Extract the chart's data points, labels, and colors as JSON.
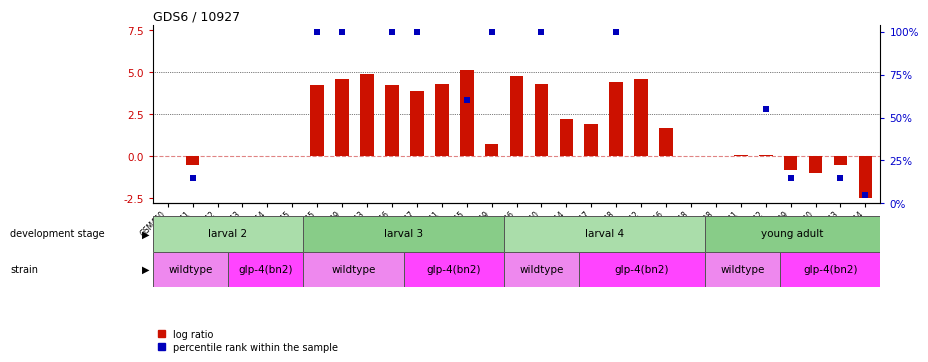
{
  "title": "GDS6 / 10927",
  "samples": [
    "GSM460",
    "GSM461",
    "GSM462",
    "GSM463",
    "GSM464",
    "GSM465",
    "GSM445",
    "GSM449",
    "GSM453",
    "GSM466",
    "GSM447",
    "GSM451",
    "GSM455",
    "GSM459",
    "GSM446",
    "GSM450",
    "GSM454",
    "GSM457",
    "GSM448",
    "GSM452",
    "GSM456",
    "GSM458",
    "GSM438",
    "GSM441",
    "GSM442",
    "GSM439",
    "GSM440",
    "GSM443",
    "GSM444"
  ],
  "log_ratio": [
    0.0,
    -0.55,
    0.0,
    0.0,
    0.0,
    0.0,
    4.2,
    4.6,
    4.9,
    4.2,
    3.9,
    4.3,
    5.1,
    0.7,
    4.75,
    4.3,
    2.2,
    1.9,
    4.4,
    4.6,
    1.7,
    0.0,
    0.0,
    0.05,
    0.1,
    -0.8,
    -1.0,
    -0.5,
    -2.5
  ],
  "percentile": [
    null,
    15,
    null,
    null,
    null,
    null,
    100,
    100,
    null,
    100,
    100,
    null,
    60,
    100,
    null,
    100,
    null,
    null,
    100,
    null,
    null,
    null,
    null,
    null,
    55,
    15,
    null,
    15,
    5
  ],
  "dev_stage_groups": [
    {
      "label": "larval 2",
      "start": 0,
      "end": 6
    },
    {
      "label": "larval 3",
      "start": 6,
      "end": 14
    },
    {
      "label": "larval 4",
      "start": 14,
      "end": 22
    },
    {
      "label": "young adult",
      "start": 22,
      "end": 29
    }
  ],
  "dev_stage_colors": [
    "#aaddaa",
    "#88cc88",
    "#aaddaa",
    "#88cc88"
  ],
  "strain_groups": [
    {
      "label": "wildtype",
      "start": 0,
      "end": 3
    },
    {
      "label": "glp-4(bn2)",
      "start": 3,
      "end": 6
    },
    {
      "label": "wildtype",
      "start": 6,
      "end": 10
    },
    {
      "label": "glp-4(bn2)",
      "start": 10,
      "end": 14
    },
    {
      "label": "wildtype",
      "start": 14,
      "end": 17
    },
    {
      "label": "glp-4(bn2)",
      "start": 17,
      "end": 22
    },
    {
      "label": "wildtype",
      "start": 22,
      "end": 25
    },
    {
      "label": "glp-4(bn2)",
      "start": 25,
      "end": 29
    }
  ],
  "strain_colors": {
    "wildtype": "#ee88ee",
    "glp-4(bn2)": "#ff44ff"
  },
  "ylim_left": [
    -2.8,
    7.8
  ],
  "ylim_right": [
    0,
    104
  ],
  "yticks_left": [
    -2.5,
    0.0,
    2.5,
    5.0,
    7.5
  ],
  "yticks_right": [
    0,
    25,
    50,
    75,
    100
  ],
  "ytick_right_labels": [
    "0%",
    "25%",
    "50%",
    "75%",
    "100%"
  ],
  "bar_color": "#cc1100",
  "dot_color": "#0000bb",
  "bar_width": 0.55,
  "background_color": "#ffffff"
}
